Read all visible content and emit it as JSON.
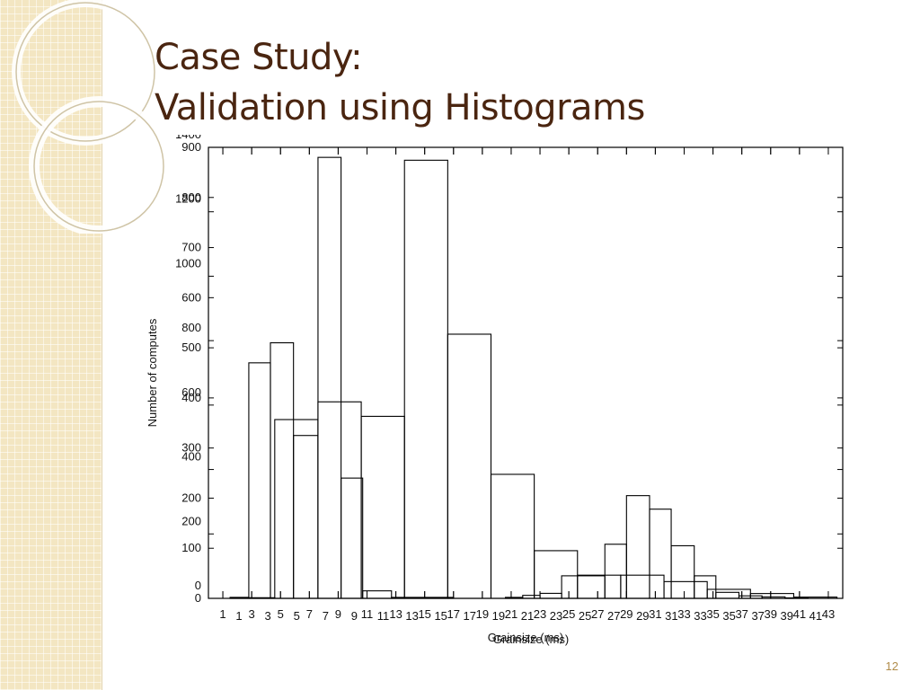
{
  "slide": {
    "title_line1": "Case Study:",
    "title_line2": "Validation using Histograms",
    "slide_number": "12"
  },
  "theme": {
    "title_color": "#4a2510",
    "band_color": "#f3e6c2",
    "slide_number_color": "#b08c4a"
  },
  "chart_data": [
    {
      "type": "bar",
      "xlabel": "Grainsize (ms)",
      "ylabel": "Number of computes",
      "ylim": [
        0,
        900
      ],
      "yticks": [
        0,
        100,
        200,
        300,
        400,
        500,
        600,
        700,
        800,
        900
      ],
      "xticks": [
        "1",
        "3",
        "5",
        "7",
        "9",
        "11",
        "13",
        "15",
        "17",
        "19",
        "21",
        "23",
        "25",
        "27",
        "29",
        "31",
        "33",
        "35",
        "37",
        "39",
        "41",
        "43"
      ],
      "bins": [
        {
          "x0": 1.5,
          "x1": 2.8,
          "value": 2
        },
        {
          "x0": 2.8,
          "x1": 4.3,
          "value": 470
        },
        {
          "x0": 4.3,
          "x1": 5.9,
          "value": 510
        },
        {
          "x0": 5.9,
          "x1": 7.6,
          "value": 325
        },
        {
          "x0": 7.6,
          "x1": 9.2,
          "value": 880
        },
        {
          "x0": 9.2,
          "x1": 10.7,
          "value": 240
        },
        {
          "x0": 10.7,
          "x1": 12.7,
          "value": 15
        },
        {
          "x0": 12.7,
          "x1": 17.0,
          "value": 2
        },
        {
          "x0": 20.6,
          "x1": 21.8,
          "value": 2
        },
        {
          "x0": 21.8,
          "x1": 23.0,
          "value": 6
        },
        {
          "x0": 23.0,
          "x1": 24.5,
          "value": 10
        },
        {
          "x0": 24.5,
          "x1": 27.5,
          "value": 45
        },
        {
          "x0": 27.5,
          "x1": 29.0,
          "value": 108
        },
        {
          "x0": 29.0,
          "x1": 30.6,
          "value": 205
        },
        {
          "x0": 30.6,
          "x1": 32.1,
          "value": 178
        },
        {
          "x0": 32.1,
          "x1": 33.7,
          "value": 105
        },
        {
          "x0": 33.7,
          "x1": 35.2,
          "value": 45
        },
        {
          "x0": 35.2,
          "x1": 36.8,
          "value": 12
        },
        {
          "x0": 36.8,
          "x1": 38.4,
          "value": 5
        },
        {
          "x0": 38.4,
          "x1": 40.0,
          "value": 3
        },
        {
          "x0": 40.0,
          "x1": 41.6,
          "value": 1
        }
      ]
    },
    {
      "type": "bar",
      "xlabel": "Grainsize (ms)",
      "ylabel": "",
      "ylim": [
        0,
        1400
      ],
      "yticks": [
        0,
        200,
        400,
        600,
        800,
        1000,
        1200,
        1400
      ],
      "xticks": [
        "1",
        "3",
        "5",
        "7",
        "9",
        "11",
        "13",
        "15",
        "17",
        "19",
        "21",
        "23",
        "25",
        "27",
        "29",
        "31",
        "33",
        "35",
        "37",
        "39",
        "41"
      ],
      "bins": [
        {
          "x0": 1.5,
          "x1": 4.6,
          "value": 2
        },
        {
          "x0": 4.6,
          "x1": 7.6,
          "value": 555
        },
        {
          "x0": 7.6,
          "x1": 10.6,
          "value": 610
        },
        {
          "x0": 10.6,
          "x1": 13.6,
          "value": 565
        },
        {
          "x0": 13.6,
          "x1": 16.6,
          "value": 1360
        },
        {
          "x0": 16.6,
          "x1": 19.6,
          "value": 820
        },
        {
          "x0": 19.6,
          "x1": 22.6,
          "value": 385
        },
        {
          "x0": 22.6,
          "x1": 25.6,
          "value": 148
        },
        {
          "x0": 25.6,
          "x1": 28.6,
          "value": 72
        },
        {
          "x0": 28.6,
          "x1": 31.6,
          "value": 72
        },
        {
          "x0": 31.6,
          "x1": 34.6,
          "value": 52
        },
        {
          "x0": 34.6,
          "x1": 37.6,
          "value": 28
        },
        {
          "x0": 37.6,
          "x1": 40.6,
          "value": 15
        },
        {
          "x0": 40.6,
          "x1": 43.6,
          "value": 4
        }
      ]
    }
  ]
}
